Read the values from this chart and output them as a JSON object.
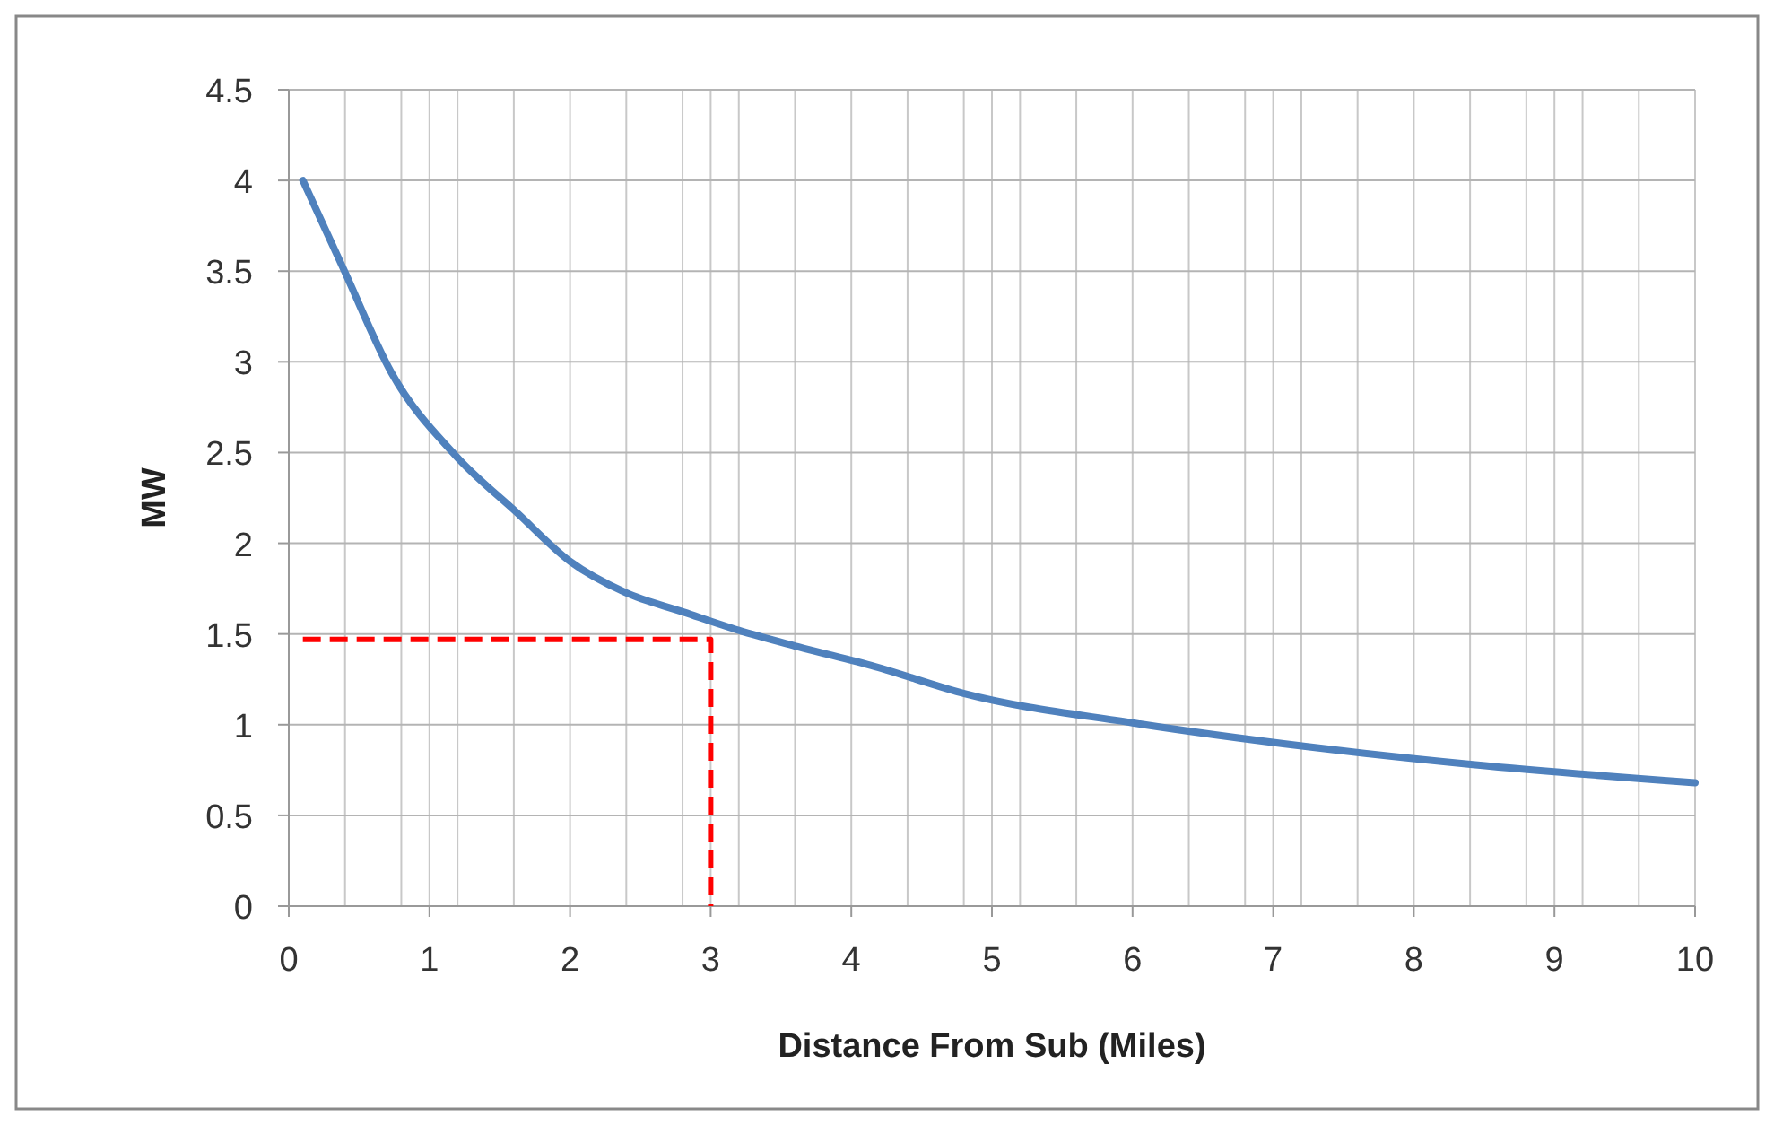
{
  "chart_data": {
    "type": "line",
    "xlabel": "Distance From Sub (Miles)",
    "ylabel": "MW",
    "xlim": [
      0,
      10
    ],
    "ylim": [
      0,
      4.5
    ],
    "xticks": [
      0,
      1,
      2,
      3,
      4,
      5,
      6,
      7,
      8,
      9,
      10,
      {
        "value": 0.4,
        "label": null
      },
      {
        "value": 0.8,
        "label": null
      },
      {
        "value": 1.2,
        "label": null
      },
      {
        "value": 1.6,
        "label": null
      },
      {
        "value": 2.4,
        "label": null
      },
      {
        "value": 2.8,
        "label": null
      },
      {
        "value": 3.2,
        "label": null
      },
      {
        "value": 3.6,
        "label": null
      },
      {
        "value": 4.4,
        "label": null
      },
      {
        "value": 4.8,
        "label": null
      },
      {
        "value": 5.2,
        "label": null
      },
      {
        "value": 5.6,
        "label": null
      },
      {
        "value": 6.4,
        "label": null
      },
      {
        "value": 6.8,
        "label": null
      },
      {
        "value": 7.2,
        "label": null
      },
      {
        "value": 7.6,
        "label": null
      },
      {
        "value": 8.4,
        "label": null
      },
      {
        "value": 8.8,
        "label": null
      },
      {
        "value": 9.2,
        "label": null
      },
      {
        "value": 9.6,
        "label": null
      }
    ],
    "yticks": [
      0,
      0.5,
      1,
      1.5,
      2,
      2.5,
      3,
      3.5,
      4,
      4.5
    ],
    "grid": true,
    "marker": "none",
    "series": [
      {
        "color": "#4f81bd",
        "line_style": "solid",
        "x": [
          0.1,
          0.39,
          0.73,
          1.19,
          1.62,
          2.0,
          2.39,
          2.81,
          3.2,
          3.62,
          4.17,
          4.81,
          6.0,
          7.23,
          8.42,
          10.0
        ],
        "values": [
          4.0,
          3.51,
          2.94,
          2.48,
          2.17,
          1.9,
          1.73,
          1.62,
          1.52,
          1.43,
          1.32,
          1.17,
          1.01,
          0.88,
          0.78,
          0.68
        ]
      },
      {
        "color": "#ff0000",
        "line_style": "dashed",
        "x": [
          0.1,
          3,
          3
        ],
        "values": [
          1.47,
          1.47,
          0
        ]
      }
    ]
  }
}
